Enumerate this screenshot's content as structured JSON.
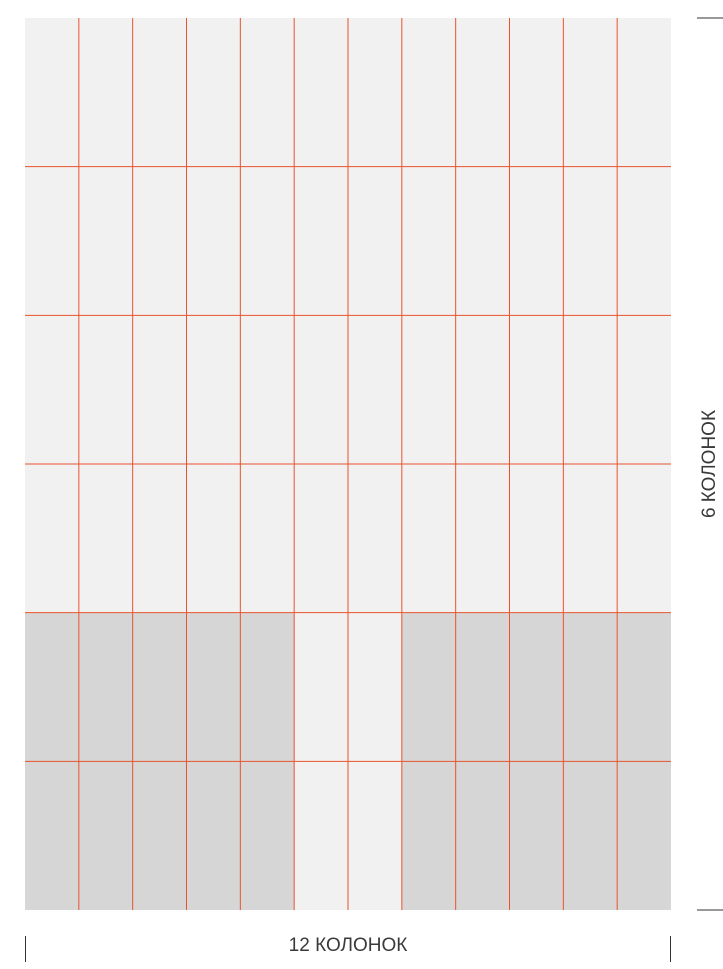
{
  "labels": {
    "columns": "12 КОЛОНОК",
    "rows": "6 КОЛОНОК"
  }
}
